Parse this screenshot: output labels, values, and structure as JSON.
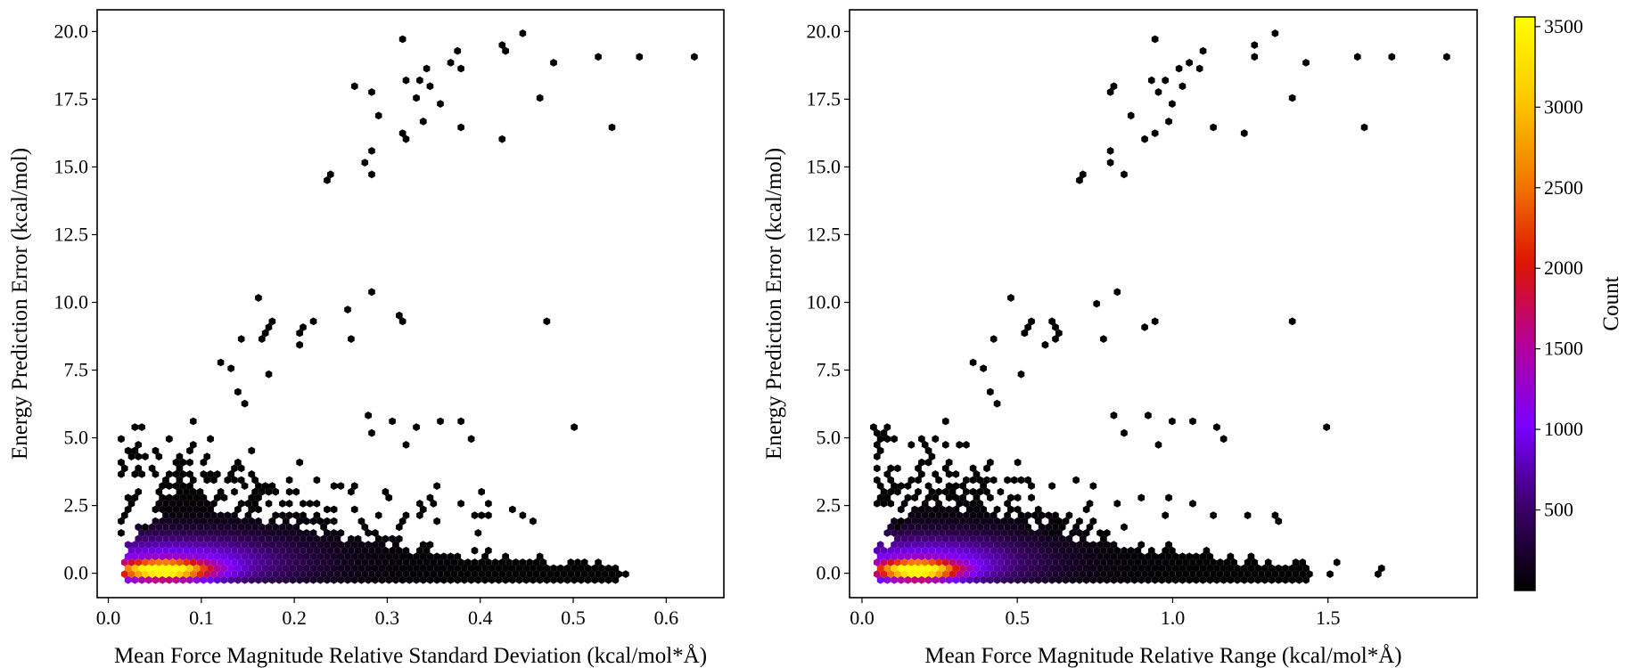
{
  "chart_data": [
    {
      "type": "hexbin",
      "xlabel": "Mean Force Magnitude Relative Standard Deviation (kcal/mol*Å)",
      "ylabel": "Energy Prediction Error (kcal/mol)",
      "xlim": [
        -0.012,
        0.662
      ],
      "ylim": [
        -0.9,
        20.8
      ],
      "xticks": [
        0.0,
        0.1,
        0.2,
        0.3,
        0.4,
        0.5,
        0.6
      ],
      "xtick_labels": [
        "0.0",
        "0.1",
        "0.2",
        "0.3",
        "0.4",
        "0.5",
        "0.6"
      ],
      "yticks": [
        0.0,
        2.5,
        5.0,
        7.5,
        10.0,
        12.5,
        15.0,
        17.5,
        20.0
      ],
      "ytick_labels": [
        "0.0",
        "2.5",
        "5.0",
        "7.5",
        "10.0",
        "12.5",
        "15.0",
        "17.5",
        "20.0"
      ],
      "cluster": {
        "x_min": 0.015,
        "x_peak": 0.058,
        "x_tail": 0.55,
        "y_max": 5.6,
        "peak_count": 3500
      },
      "outliers": [
        [
          0.32,
          19.7
        ],
        [
          0.375,
          19.35
        ],
        [
          0.445,
          19.85
        ],
        [
          0.42,
          19.5
        ],
        [
          0.425,
          19.2
        ],
        [
          0.53,
          19.15
        ],
        [
          0.57,
          19.0
        ],
        [
          0.63,
          19.15
        ],
        [
          0.34,
          18.6
        ],
        [
          0.37,
          18.8
        ],
        [
          0.378,
          18.65
        ],
        [
          0.482,
          18.8
        ],
        [
          0.265,
          17.95
        ],
        [
          0.28,
          17.75
        ],
        [
          0.318,
          18.1
        ],
        [
          0.332,
          18.3
        ],
        [
          0.345,
          17.95
        ],
        [
          0.333,
          17.6
        ],
        [
          0.358,
          17.25
        ],
        [
          0.465,
          17.6
        ],
        [
          0.288,
          16.9
        ],
        [
          0.335,
          16.7
        ],
        [
          0.318,
          16.35
        ],
        [
          0.38,
          16.55
        ],
        [
          0.322,
          16.05
        ],
        [
          0.42,
          16.05
        ],
        [
          0.543,
          16.4
        ],
        [
          0.28,
          15.7
        ],
        [
          0.278,
          15.15
        ],
        [
          0.238,
          14.8
        ],
        [
          0.232,
          14.5
        ],
        [
          0.28,
          14.65
        ],
        [
          0.283,
          10.3
        ],
        [
          0.162,
          10.1
        ],
        [
          0.255,
          9.75
        ],
        [
          0.178,
          9.25
        ],
        [
          0.174,
          9.05
        ],
        [
          0.172,
          8.8
        ],
        [
          0.168,
          8.65
        ],
        [
          0.203,
          8.85
        ],
        [
          0.212,
          9.0
        ],
        [
          0.22,
          9.25
        ],
        [
          0.207,
          8.4
        ],
        [
          0.258,
          8.55
        ],
        [
          0.145,
          8.55
        ],
        [
          0.315,
          9.45
        ],
        [
          0.313,
          9.35
        ],
        [
          0.475,
          9.4
        ],
        [
          0.12,
          7.85
        ],
        [
          0.132,
          7.5
        ],
        [
          0.175,
          7.35
        ],
        [
          0.138,
          6.6
        ],
        [
          0.145,
          6.3
        ],
        [
          0.28,
          5.75
        ],
        [
          0.095,
          5.6
        ],
        [
          0.328,
          5.4
        ],
        [
          0.305,
          5.6
        ],
        [
          0.355,
          5.55
        ],
        [
          0.377,
          5.6
        ],
        [
          0.498,
          5.4
        ],
        [
          0.387,
          4.9
        ],
        [
          0.322,
          4.7
        ],
        [
          0.283,
          5.1
        ],
        [
          0.41,
          2.1
        ],
        [
          0.445,
          2.05
        ],
        [
          0.455,
          1.9
        ],
        [
          0.53,
          0.4
        ],
        [
          0.54,
          0.05
        ],
        [
          0.555,
          0.05
        ],
        [
          0.51,
          0.3
        ],
        [
          0.485,
          0.2
        ],
        [
          0.525,
          0.05
        ]
      ]
    },
    {
      "type": "hexbin",
      "xlabel": "Mean Force Magnitude Relative Range (kcal/mol*Å)",
      "ylabel": "Energy Prediction Error (kcal/mol)",
      "xlim": [
        -0.04,
        1.98
      ],
      "ylim": [
        -0.9,
        20.8
      ],
      "xticks": [
        0.0,
        0.5,
        1.0,
        1.5
      ],
      "xtick_labels": [
        "0.0",
        "0.5",
        "1.0",
        "1.5"
      ],
      "yticks": [
        0.0,
        2.5,
        5.0,
        7.5,
        10.0,
        12.5,
        15.0,
        17.5,
        20.0
      ],
      "ytick_labels": [
        "0.0",
        "2.5",
        "5.0",
        "7.5",
        "10.0",
        "12.5",
        "15.0",
        "17.5",
        "20.0"
      ],
      "cluster": {
        "x_min": 0.045,
        "x_peak": 0.175,
        "x_tail": 1.45,
        "y_max": 5.6,
        "peak_count": 3500
      },
      "outliers": [
        [
          0.94,
          19.7
        ],
        [
          1.1,
          19.35
        ],
        [
          1.33,
          19.85
        ],
        [
          1.26,
          19.5
        ],
        [
          1.27,
          19.0
        ],
        [
          1.6,
          19.15
        ],
        [
          1.7,
          19.0
        ],
        [
          1.88,
          19.15
        ],
        [
          1.02,
          18.6
        ],
        [
          1.06,
          18.8
        ],
        [
          1.08,
          18.65
        ],
        [
          1.44,
          18.8
        ],
        [
          0.8,
          17.95
        ],
        [
          0.79,
          17.75
        ],
        [
          0.93,
          18.1
        ],
        [
          0.98,
          18.3
        ],
        [
          1.03,
          17.95
        ],
        [
          0.96,
          17.75
        ],
        [
          0.995,
          17.25
        ],
        [
          1.38,
          17.6
        ],
        [
          0.86,
          16.9
        ],
        [
          0.99,
          16.7
        ],
        [
          0.95,
          16.35
        ],
        [
          1.14,
          16.55
        ],
        [
          0.91,
          16.05
        ],
        [
          1.24,
          16.2
        ],
        [
          1.62,
          16.4
        ],
        [
          0.81,
          15.7
        ],
        [
          0.8,
          15.15
        ],
        [
          0.71,
          14.8
        ],
        [
          0.71,
          14.5
        ],
        [
          0.84,
          14.65
        ],
        [
          0.82,
          10.3
        ],
        [
          0.49,
          10.1
        ],
        [
          0.76,
          9.9
        ],
        [
          0.55,
          9.25
        ],
        [
          0.53,
          9.05
        ],
        [
          0.525,
          8.8
        ],
        [
          0.62,
          9.25
        ],
        [
          0.64,
          8.9
        ],
        [
          0.63,
          9.0
        ],
        [
          0.62,
          8.65
        ],
        [
          0.6,
          8.4
        ],
        [
          0.78,
          8.55
        ],
        [
          0.43,
          8.55
        ],
        [
          0.94,
          9.4
        ],
        [
          0.91,
          9.1
        ],
        [
          1.38,
          9.4
        ],
        [
          0.36,
          7.85
        ],
        [
          0.39,
          7.5
        ],
        [
          0.52,
          7.35
        ],
        [
          0.41,
          6.6
        ],
        [
          0.44,
          6.3
        ],
        [
          0.8,
          5.75
        ],
        [
          0.28,
          5.6
        ],
        [
          1.0,
          5.55
        ],
        [
          0.92,
          5.75
        ],
        [
          1.07,
          5.55
        ],
        [
          1.14,
          5.4
        ],
        [
          1.5,
          5.4
        ],
        [
          1.16,
          4.9
        ],
        [
          0.96,
          4.7
        ],
        [
          0.84,
          5.1
        ],
        [
          1.24,
          2.1
        ],
        [
          1.32,
          2.05
        ],
        [
          1.35,
          1.9
        ],
        [
          1.53,
          0.4
        ],
        [
          1.67,
          0.2
        ],
        [
          1.655,
          0.05
        ],
        [
          1.51,
          0.05
        ],
        [
          1.42,
          0.3
        ],
        [
          1.44,
          0.1
        ]
      ]
    }
  ],
  "colorbar": {
    "label": "Count",
    "min": 0,
    "max": 3560,
    "ticks": [
      500,
      1000,
      1500,
      2000,
      2500,
      3000,
      3500
    ],
    "tick_labels": [
      "500",
      "1000",
      "1500",
      "2000",
      "2500",
      "3000",
      "3500"
    ],
    "colormap": "gnuplot",
    "colors": [
      "#000000",
      "#3a0066",
      "#7a00ff",
      "#b4009a",
      "#dd1500",
      "#f37a00",
      "#fdc800",
      "#ffff00"
    ]
  }
}
